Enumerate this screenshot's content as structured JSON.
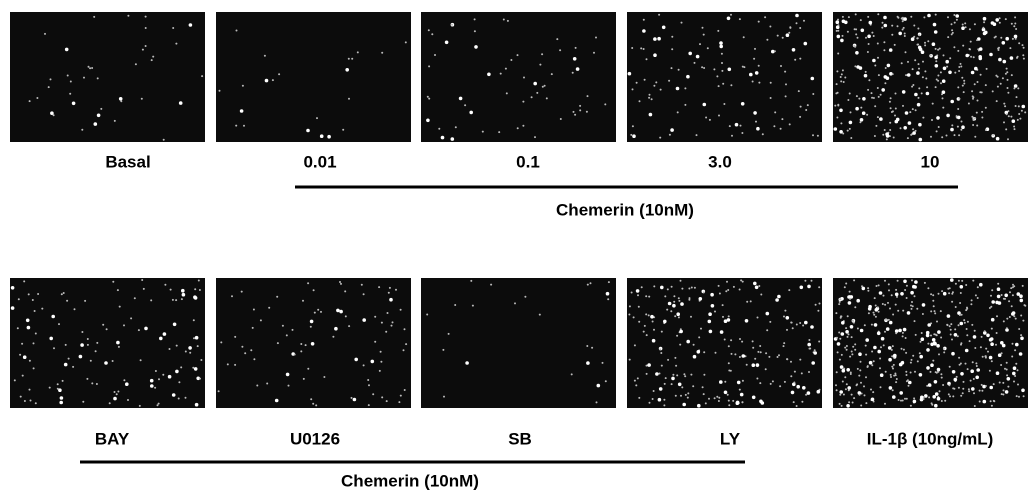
{
  "rows": [
    {
      "panels": [
        "Basal",
        "0.01",
        "0.1",
        "3.0",
        "10"
      ],
      "group_label": "Chemerin (10nM)"
    },
    {
      "panels": [
        "BAY",
        "U0126",
        "SB",
        "LY",
        "IL-1β (10ng/mL)"
      ],
      "group_label": "Chemerin (10nM)"
    }
  ]
}
